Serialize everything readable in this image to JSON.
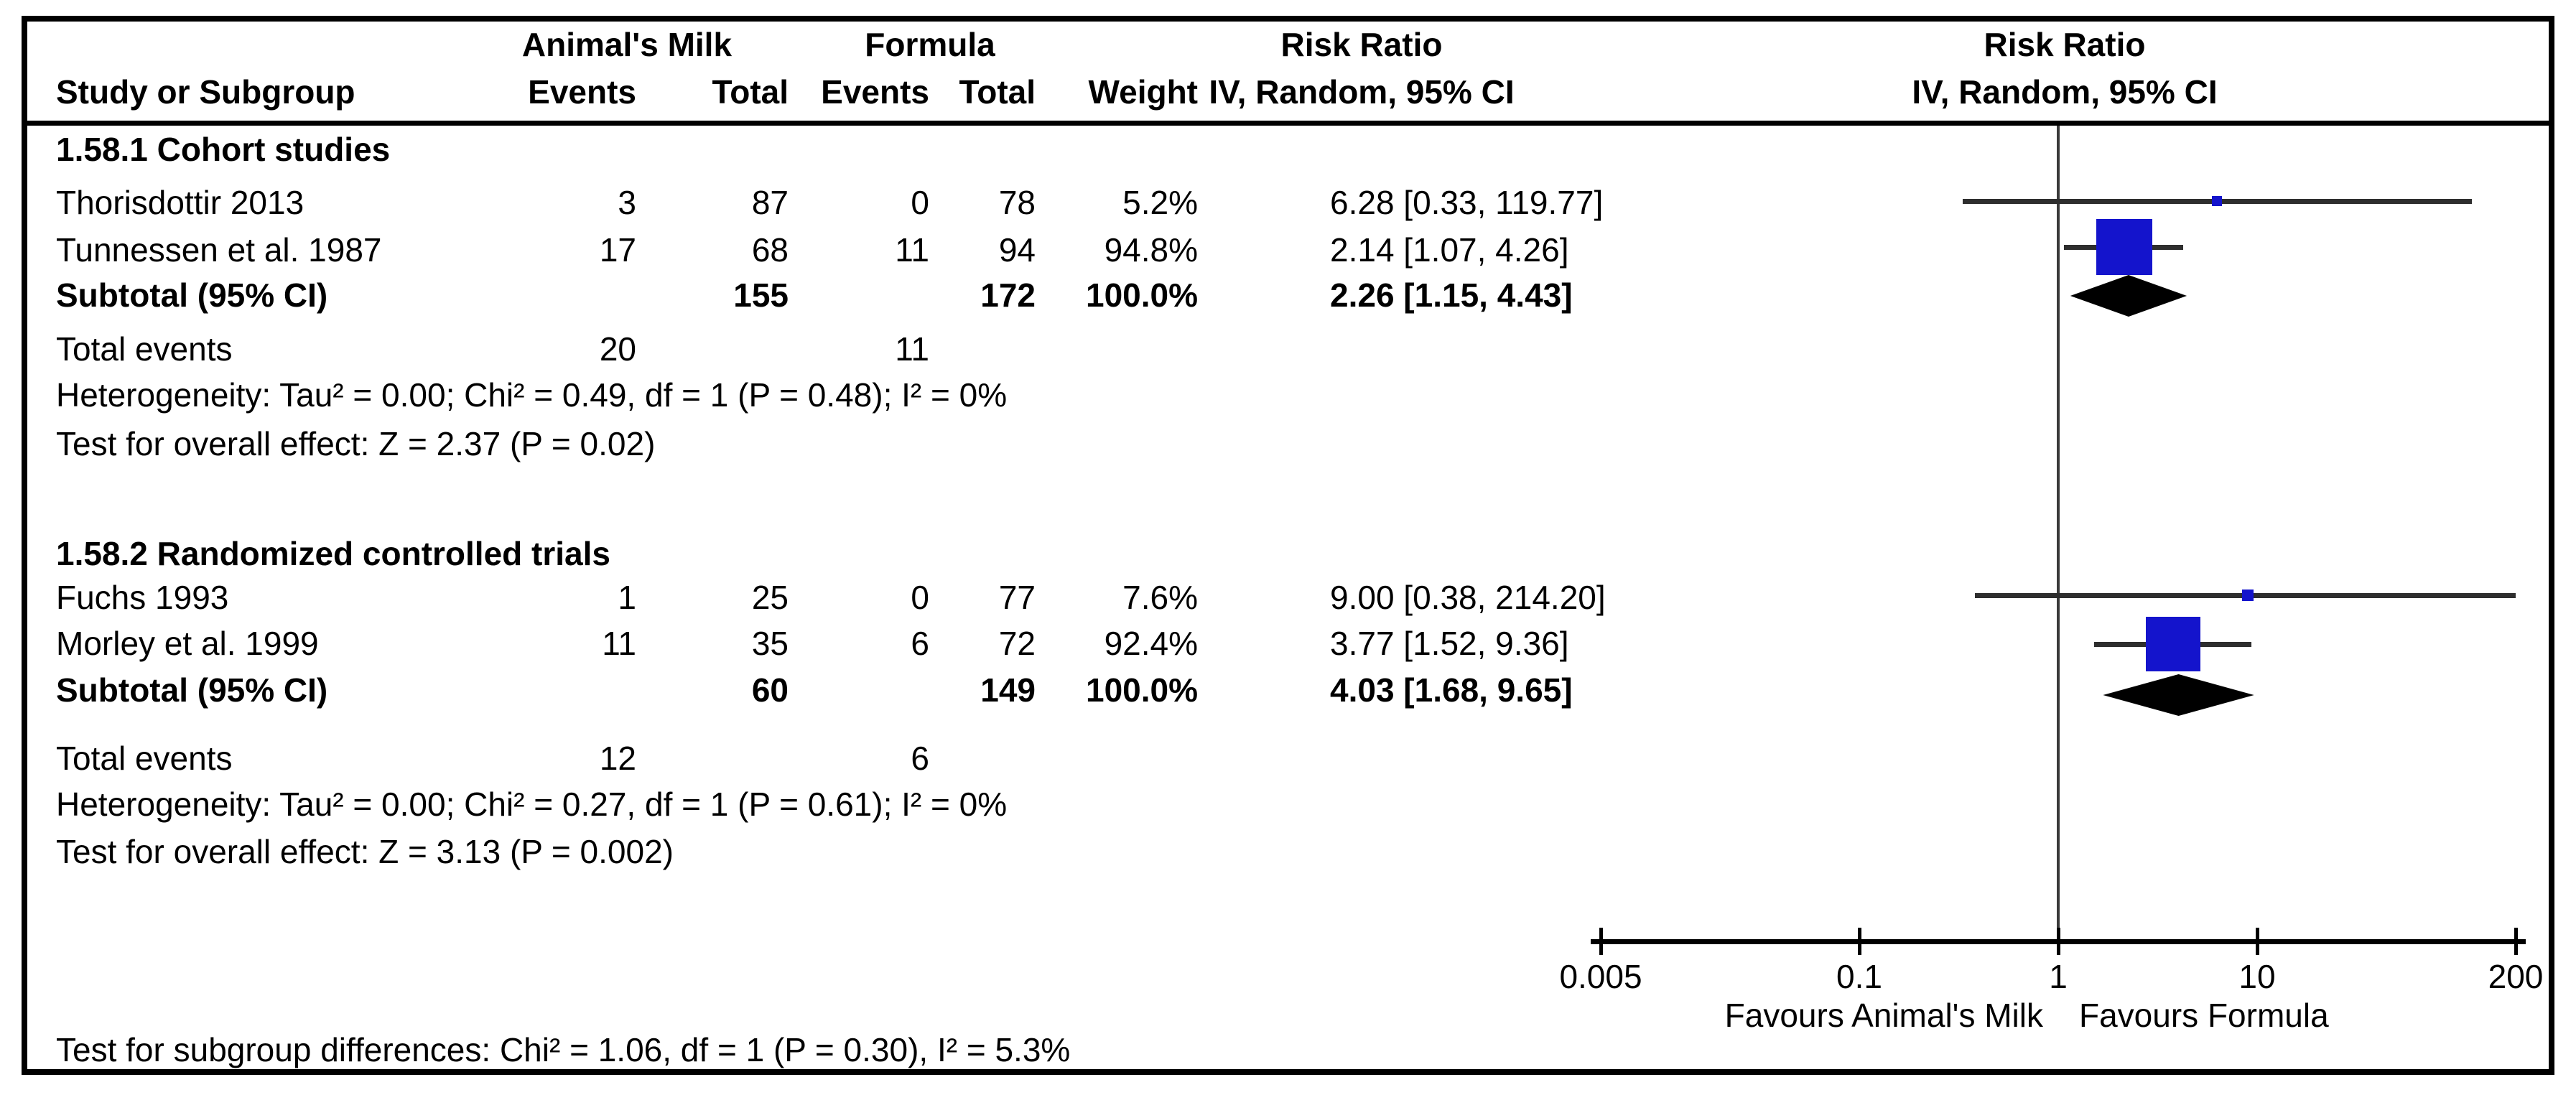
{
  "header": {
    "col_study": "Study or Subgroup",
    "group1_title": "Animal's Milk",
    "group2_title": "Formula",
    "col_events": "Events",
    "col_total": "Total",
    "col_weight": "Weight",
    "effect_title": "Risk Ratio",
    "effect_subtitle": "IV, Random, 95% CI",
    "plot_title": "Risk Ratio",
    "plot_subtitle": "IV, Random, 95% CI"
  },
  "colors": {
    "square_blue": "#1414cc",
    "diamond_black": "#000000",
    "ci_line": "#2e2e2e",
    "null_line_gray": "#3a3a3a",
    "text": "#000000",
    "border": "#000000"
  },
  "chart_data": {
    "type": "forest",
    "effect_measure": "Risk Ratio",
    "model": "IV, Random, 95% CI",
    "x_axis": {
      "scale": "log",
      "min": 0.005,
      "max": 200,
      "ticks": [
        0.005,
        0.1,
        1,
        10,
        200
      ],
      "tick_labels": [
        "0.005",
        "0.1",
        "1",
        "10",
        "200"
      ],
      "favours_left": "Favours Animal's Milk",
      "favours_right": "Favours Formula"
    },
    "subgroups": [
      {
        "label": "1.58.1 Cohort studies",
        "studies": [
          {
            "name": "Thorisdottir 2013",
            "events1": 3,
            "total1": 87,
            "events2": 0,
            "total2": 78,
            "weight": "5.2%",
            "weight_pct": 5.2,
            "estimate": 6.28,
            "ci_low": 0.33,
            "ci_high": 119.77,
            "ci_text": "6.28 [0.33, 119.77]"
          },
          {
            "name": "Tunnessen et al. 1987",
            "events1": 17,
            "total1": 68,
            "events2": 11,
            "total2": 94,
            "weight": "94.8%",
            "weight_pct": 94.8,
            "estimate": 2.14,
            "ci_low": 1.07,
            "ci_high": 4.26,
            "ci_text": "2.14 [1.07, 4.26]"
          }
        ],
        "subtotal": {
          "label": "Subtotal (95% CI)",
          "total1": 155,
          "total2": 172,
          "weight": "100.0%",
          "estimate": 2.26,
          "ci_low": 1.15,
          "ci_high": 4.43,
          "ci_text": "2.26 [1.15, 4.43]"
        },
        "total_events": {
          "label": "Total events",
          "events1": 20,
          "events2": 11
        },
        "heterogeneity": "Heterogeneity: Tau² = 0.00; Chi² = 0.49, df = 1 (P = 0.48); I² = 0%",
        "overall_effect": "Test for overall effect: Z = 2.37 (P = 0.02)"
      },
      {
        "label": "1.58.2 Randomized controlled trials",
        "studies": [
          {
            "name": "Fuchs 1993",
            "events1": 1,
            "total1": 25,
            "events2": 0,
            "total2": 77,
            "weight": "7.6%",
            "weight_pct": 7.6,
            "estimate": 9.0,
            "ci_low": 0.38,
            "ci_high": 214.2,
            "ci_text": "9.00 [0.38, 214.20]"
          },
          {
            "name": "Morley et al. 1999",
            "events1": 11,
            "total1": 35,
            "events2": 6,
            "total2": 72,
            "weight": "92.4%",
            "weight_pct": 92.4,
            "estimate": 3.77,
            "ci_low": 1.52,
            "ci_high": 9.36,
            "ci_text": "3.77 [1.52, 9.36]"
          }
        ],
        "subtotal": {
          "label": "Subtotal (95% CI)",
          "total1": 60,
          "total2": 149,
          "weight": "100.0%",
          "estimate": 4.03,
          "ci_low": 1.68,
          "ci_high": 9.65,
          "ci_text": "4.03 [1.68, 9.65]"
        },
        "total_events": {
          "label": "Total events",
          "events1": 12,
          "events2": 6
        },
        "heterogeneity": "Heterogeneity: Tau² = 0.00; Chi² = 0.27, df = 1 (P = 0.61); I² = 0%",
        "overall_effect": "Test for overall effect: Z = 3.13 (P = 0.002)"
      }
    ],
    "footer": "Test for subgroup differences: Chi² = 1.06, df = 1 (P = 0.30), I² = 5.3%"
  }
}
